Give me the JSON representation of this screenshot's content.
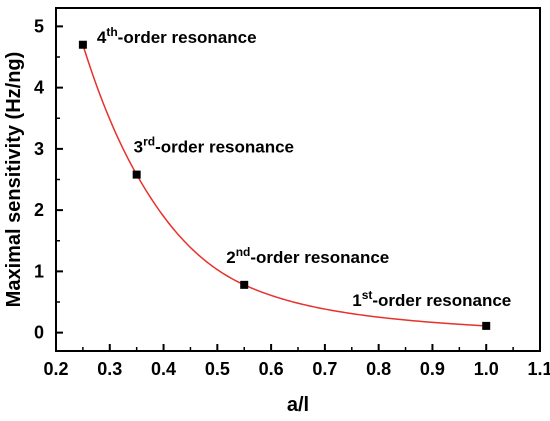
{
  "chart_data": {
    "type": "scatter",
    "xlabel": "a/l",
    "ylabel": "Maximal sensitivity (Hz/ng)",
    "xlim": [
      0.2,
      1.1
    ],
    "ylim": [
      -0.3,
      5.3
    ],
    "xticks": [
      "0.2",
      "0.3",
      "0.4",
      "0.5",
      "0.6",
      "0.7",
      "0.8",
      "0.9",
      "1.0",
      "1.1"
    ],
    "yticks": [
      "0",
      "1",
      "2",
      "3",
      "4",
      "5"
    ],
    "grid": false,
    "legend": "none",
    "marker_color": "#000000",
    "fit_color": "#e8312b",
    "points": [
      {
        "x": 0.25,
        "y": 4.7,
        "label_base": "4",
        "label_sup": "th",
        "label_rest": "-order resonance"
      },
      {
        "x": 0.35,
        "y": 2.58,
        "label_base": "3",
        "label_sup": "rd",
        "label_rest": "-order resonance"
      },
      {
        "x": 0.55,
        "y": 0.78,
        "label_base": "2",
        "label_sup": "nd",
        "label_rest": "-order resonance"
      },
      {
        "x": 1.0,
        "y": 0.11,
        "label_base": "1",
        "label_sup": "st",
        "label_rest": "-order resonance"
      }
    ],
    "fit_curve": "exponential decay through points"
  }
}
